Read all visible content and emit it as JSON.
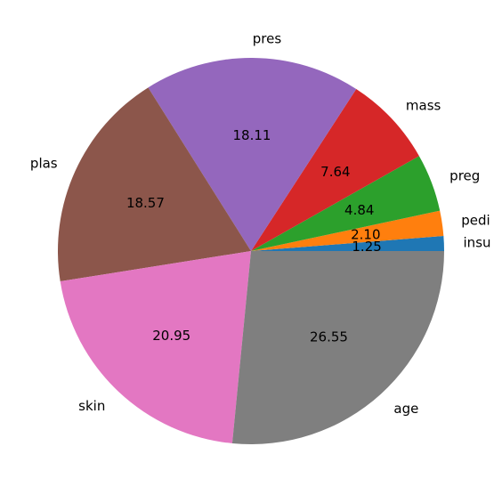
{
  "chart_data": {
    "type": "pie",
    "title": "",
    "categories": [
      "insu",
      "pedi",
      "preg",
      "mass",
      "pres",
      "plas",
      "skin",
      "age"
    ],
    "values": [
      1.25,
      2.1,
      4.84,
      7.64,
      18.11,
      18.57,
      20.95,
      26.55
    ],
    "value_labels": [
      "1.25",
      "2.10",
      "4.84",
      "7.64",
      "18.11",
      "18.57",
      "20.95",
      "26.55"
    ],
    "colors": [
      "#1f77b4",
      "#ff7f0e",
      "#2ca02c",
      "#d62728",
      "#9467bd",
      "#8c564b",
      "#e377c2",
      "#7f7f7f"
    ],
    "start_angle_deg": 0,
    "direction": "counterclockwise",
    "legend": "none"
  }
}
